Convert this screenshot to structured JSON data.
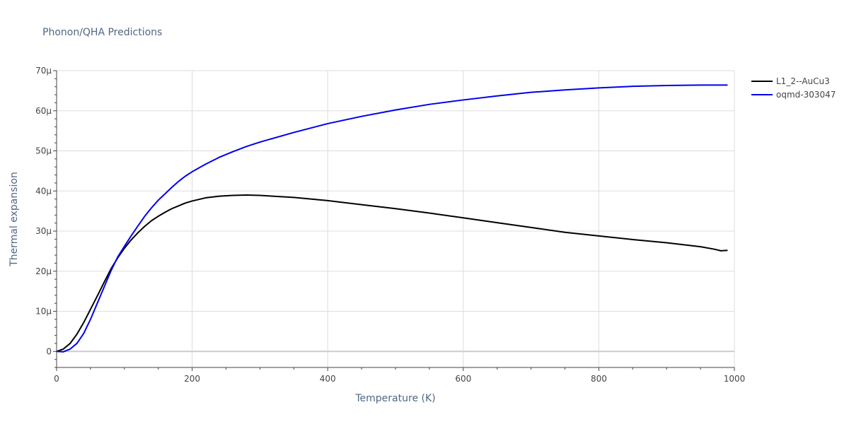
{
  "chart_data": {
    "type": "line",
    "title": "Phonon/QHA Predictions",
    "xlabel": "Temperature (K)",
    "ylabel": "Thermal expansion",
    "xlim": [
      0,
      1000
    ],
    "ylim": [
      -4e-06,
      7e-05
    ],
    "x_ticks": [
      0,
      200,
      400,
      600,
      800,
      1000
    ],
    "x_tick_labels": [
      "0",
      "200",
      "400",
      "600",
      "800",
      "1000"
    ],
    "y_ticks": [
      0,
      1e-05,
      2e-05,
      3e-05,
      4e-05,
      5e-05,
      6e-05,
      7e-05
    ],
    "y_tick_labels": [
      "0",
      "10μ",
      "20μ",
      "30μ",
      "40μ",
      "50μ",
      "60μ",
      "70μ"
    ],
    "grid": true,
    "legend_position": "top-right",
    "series": [
      {
        "name": "L1_2--AuCu3",
        "color": "#000000",
        "x": [
          0,
          10,
          20,
          30,
          40,
          50,
          60,
          70,
          80,
          90,
          100,
          110,
          120,
          130,
          140,
          150,
          160,
          170,
          180,
          190,
          200,
          220,
          240,
          260,
          280,
          300,
          350,
          400,
          450,
          500,
          550,
          600,
          650,
          700,
          750,
          800,
          850,
          900,
          950,
          970,
          980,
          990
        ],
        "y": [
          0,
          6e-07,
          2e-06,
          4.3e-06,
          7.2e-06,
          1.05e-05,
          1.38e-05,
          1.72e-05,
          2.05e-05,
          2.33e-05,
          2.57e-05,
          2.78e-05,
          2.96e-05,
          3.12e-05,
          3.26e-05,
          3.37e-05,
          3.47e-05,
          3.56e-05,
          3.63e-05,
          3.7e-05,
          3.75e-05,
          3.83e-05,
          3.87e-05,
          3.89e-05,
          3.9e-05,
          3.89e-05,
          3.84e-05,
          3.76e-05,
          3.66e-05,
          3.56e-05,
          3.45e-05,
          3.33e-05,
          3.21e-05,
          3.09e-05,
          2.97e-05,
          2.88e-05,
          2.79e-05,
          2.71e-05,
          2.61e-05,
          2.55e-05,
          2.51e-05,
          2.52e-05
        ]
      },
      {
        "name": "oqmd-303047",
        "color": "#0000ee",
        "x": [
          0,
          10,
          20,
          30,
          40,
          50,
          60,
          70,
          80,
          90,
          100,
          110,
          120,
          130,
          140,
          150,
          160,
          170,
          180,
          190,
          200,
          220,
          240,
          260,
          280,
          300,
          350,
          400,
          450,
          500,
          550,
          600,
          650,
          700,
          750,
          800,
          850,
          900,
          950,
          990
        ],
        "y": [
          0,
          -1e-07,
          6e-07,
          2e-06,
          4.5e-06,
          8e-06,
          1.2e-05,
          1.6e-05,
          2e-05,
          2.35e-05,
          2.62e-05,
          2.88e-05,
          3.13e-05,
          3.37e-05,
          3.58e-05,
          3.77e-05,
          3.93e-05,
          4.09e-05,
          4.24e-05,
          4.37e-05,
          4.48e-05,
          4.67e-05,
          4.84e-05,
          4.98e-05,
          5.11e-05,
          5.22e-05,
          5.46e-05,
          5.68e-05,
          5.86e-05,
          6.02e-05,
          6.16e-05,
          6.27e-05,
          6.37e-05,
          6.46e-05,
          6.52e-05,
          6.57e-05,
          6.61e-05,
          6.63e-05,
          6.64e-05,
          6.64e-05
        ]
      }
    ]
  }
}
